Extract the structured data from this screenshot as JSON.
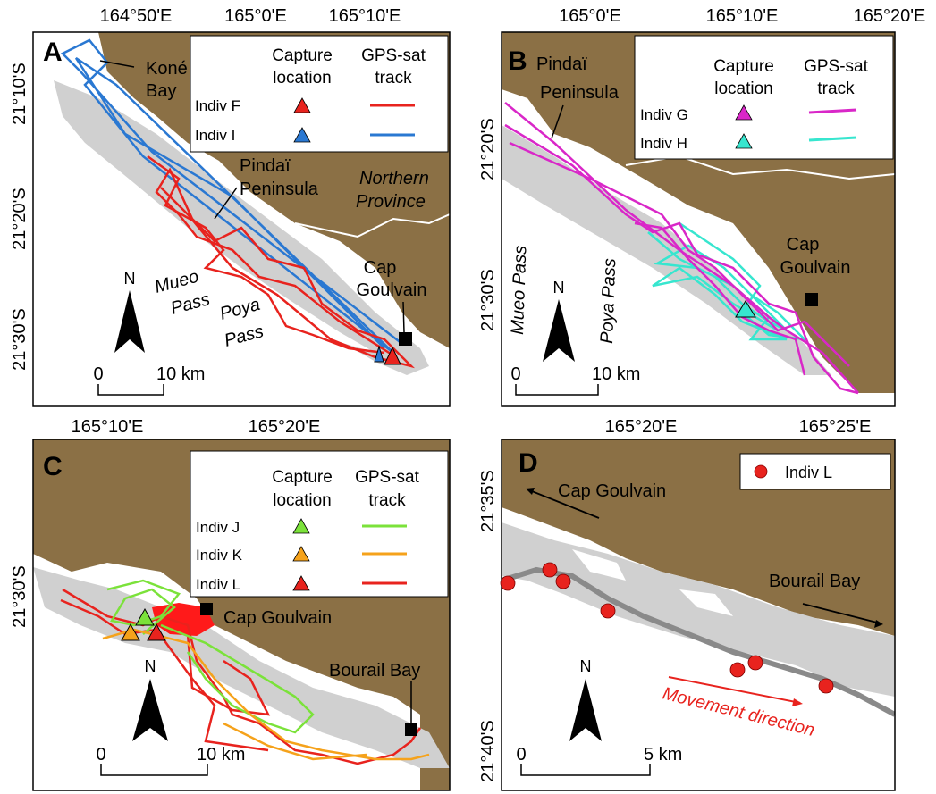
{
  "panels": {
    "A": {
      "letter": "A",
      "x_ticks": [
        "164°50'E",
        "165°0'E",
        "165°10'E"
      ],
      "y_ticks": [
        "21°10'S",
        "21°20'S",
        "21°30'S"
      ],
      "places": {
        "kone_bay": [
          "Koné",
          "Bay"
        ],
        "pindai": [
          "Pindaï",
          "Peninsula"
        ],
        "northern": [
          "Northern",
          "Province"
        ],
        "mueo": [
          "Mueo",
          "Pass"
        ],
        "poya": [
          "Poya",
          "Pass"
        ],
        "cap": [
          "Cap",
          "Goulvain"
        ]
      },
      "legend": {
        "capture_header": [
          "Capture",
          "location"
        ],
        "track_header": [
          "GPS-sat",
          "track"
        ],
        "rows": [
          {
            "label": "Indiv F",
            "color": "#e8231e"
          },
          {
            "label": "Indiv I",
            "color": "#2a78d2"
          }
        ]
      },
      "north": "N",
      "scale": {
        "zero": "0",
        "end": "10 km"
      }
    },
    "B": {
      "letter": "B",
      "x_ticks": [
        "165°0'E",
        "165°10'E",
        "165°20'E"
      ],
      "y_ticks": [
        "21°20'S",
        "21°30'S"
      ],
      "places": {
        "pindai": [
          "Pindaï",
          "Peninsula"
        ],
        "mueo": "Mueo Pass",
        "poya": "Poya Pass",
        "cap": [
          "Cap",
          "Goulvain"
        ]
      },
      "legend": {
        "capture_header": [
          "Capture",
          "location"
        ],
        "track_header": [
          "GPS-sat",
          "track"
        ],
        "rows": [
          {
            "label": "Indiv G",
            "color": "#d927c8"
          },
          {
            "label": "Indiv H",
            "color": "#37e6cf"
          }
        ]
      },
      "north": "N",
      "scale": {
        "zero": "0",
        "end": "10 km"
      }
    },
    "C": {
      "letter": "C",
      "x_ticks": [
        "165°10'E",
        "165°20'E"
      ],
      "y_ticks": [
        "21°30'S"
      ],
      "places": {
        "cap": "Cap Goulvain",
        "bourail": "Bourail Bay"
      },
      "legend": {
        "capture_header": [
          "Capture",
          "location"
        ],
        "track_header": [
          "GPS-sat",
          "track"
        ],
        "rows": [
          {
            "label": "Indiv J",
            "color": "#7be23a"
          },
          {
            "label": "Indiv K",
            "color": "#f5a21b"
          },
          {
            "label": "Indiv L",
            "color": "#e8231e"
          }
        ]
      },
      "north": "N",
      "scale": {
        "zero": "0",
        "end": "10 km"
      }
    },
    "D": {
      "letter": "D",
      "x_ticks": [
        "165°20'E",
        "165°25'E"
      ],
      "y_ticks": [
        "21°35'S",
        "21°40'S"
      ],
      "places": {
        "cap": "Cap Goulvain",
        "bourail": "Bourail Bay",
        "movement": "Movement direction"
      },
      "legend": {
        "rows": [
          {
            "label": "Indiv L",
            "color": "#e8231e"
          }
        ]
      },
      "north": "N",
      "scale": {
        "zero": "0",
        "end": "5 km"
      }
    }
  },
  "colors": {
    "land": "#8b7045",
    "lagoon_light": "#d0d0d0",
    "reef_dark": "#8a8a8a",
    "frame": "#000000"
  }
}
